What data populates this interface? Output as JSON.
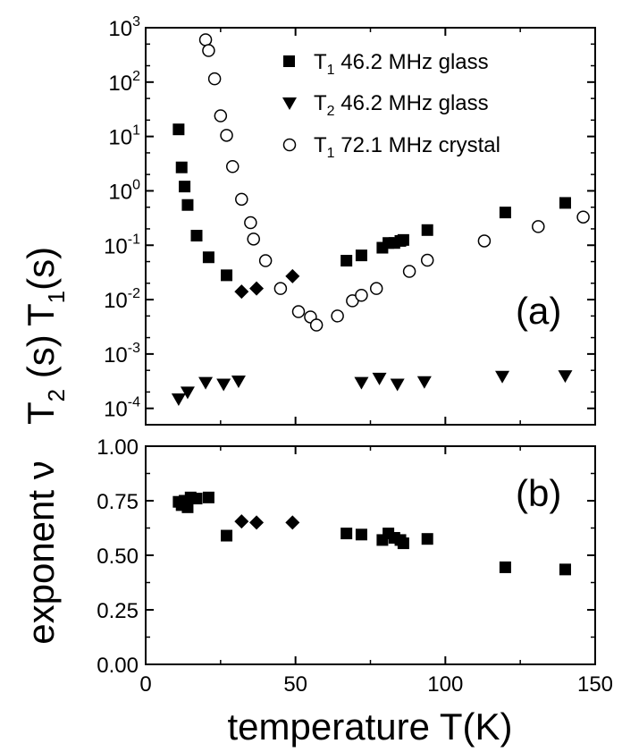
{
  "chart_data": [
    {
      "panel": "(a)",
      "type": "scatter",
      "x_range": [
        0,
        150
      ],
      "y_scale": "log",
      "y_range": [
        5e-05,
        1000
      ],
      "y_tick_exponents": [
        -4,
        -3,
        -2,
        -1,
        0,
        1,
        2,
        3
      ],
      "y_tick_base": "10",
      "ylabel_top": {
        "main": "T",
        "sub": "1",
        "rest": "(s)"
      },
      "ylabel_bottom": {
        "main": "T",
        "sub": "2",
        "rest": " (s)"
      },
      "legend_position": "top-right",
      "legend": [
        {
          "main": "T",
          "sub": "1",
          "rest": " 46.2 MHz glass",
          "marker": "square-filled"
        },
        {
          "main": "T",
          "sub": "2",
          "rest": " 46.2 MHz glass",
          "marker": "triangle-down-filled"
        },
        {
          "main": "T",
          "sub": "1",
          "rest": " 72.1 MHz crystal",
          "marker": "circle-open"
        }
      ],
      "series": [
        {
          "name": "T1 46.2 MHz glass",
          "marker": "square-filled",
          "points": [
            [
              11,
              13.5
            ],
            [
              12,
              2.7
            ],
            [
              13,
              1.2
            ],
            [
              14,
              0.55
            ],
            [
              17,
              0.15
            ],
            [
              21,
              0.06
            ],
            [
              27,
              0.028
            ],
            [
              67,
              0.052
            ],
            [
              72,
              0.065
            ],
            [
              79,
              0.09
            ],
            [
              81,
              0.11
            ],
            [
              83,
              0.11
            ],
            [
              85,
              0.12
            ],
            [
              86,
              0.125
            ],
            [
              94,
              0.19
            ],
            [
              120,
              0.4
            ],
            [
              140,
              0.6
            ]
          ]
        },
        {
          "name": "T1 46.2 MHz glass (diamond)",
          "marker": "diamond-filled",
          "points": [
            [
              32,
              0.014
            ],
            [
              37,
              0.016
            ],
            [
              49,
              0.027
            ]
          ]
        },
        {
          "name": "T2 46.2 MHz glass",
          "marker": "triangle-down-filled",
          "points": [
            [
              11,
              0.00015
            ],
            [
              14,
              0.0002
            ],
            [
              20,
              0.0003
            ],
            [
              26,
              0.00028
            ],
            [
              31,
              0.00032
            ],
            [
              72,
              0.0003
            ],
            [
              78,
              0.00036
            ],
            [
              84,
              0.00028
            ],
            [
              93,
              0.00031
            ],
            [
              119,
              0.00039
            ],
            [
              140,
              0.0004
            ]
          ]
        },
        {
          "name": "T1 72.1 MHz crystal",
          "marker": "circle-open",
          "points": [
            [
              20,
              600
            ],
            [
              21,
              380
            ],
            [
              23,
              115
            ],
            [
              25,
              24
            ],
            [
              27,
              10.5
            ],
            [
              29,
              2.8
            ],
            [
              32,
              0.7
            ],
            [
              35,
              0.26
            ],
            [
              36,
              0.13
            ],
            [
              40,
              0.052
            ],
            [
              45,
              0.016
            ],
            [
              51,
              0.006
            ],
            [
              55,
              0.0048
            ],
            [
              57,
              0.0034
            ],
            [
              64,
              0.005
            ],
            [
              69,
              0.0095
            ],
            [
              72,
              0.012
            ],
            [
              77,
              0.016
            ],
            [
              88,
              0.033
            ],
            [
              94,
              0.053
            ],
            [
              113,
              0.12
            ],
            [
              131,
              0.22
            ],
            [
              146,
              0.33
            ]
          ]
        }
      ]
    },
    {
      "panel": "(b)",
      "type": "scatter",
      "x_range": [
        0,
        150
      ],
      "y_range": [
        0,
        1
      ],
      "x_ticks": [
        "0",
        "50",
        "100",
        "150"
      ],
      "y_ticks": [
        "0.00",
        "0.25",
        "0.50",
        "0.75",
        "1.00"
      ],
      "xlabel": "temperature T(K)",
      "ylabel": "exponent ν",
      "series": [
        {
          "name": "glass",
          "marker": "square-filled",
          "points": [
            [
              11,
              0.745
            ],
            [
              12,
              0.73
            ],
            [
              13,
              0.75
            ],
            [
              14,
              0.72
            ],
            [
              15,
              0.765
            ],
            [
              17,
              0.76
            ],
            [
              21,
              0.765
            ],
            [
              27,
              0.59
            ],
            [
              67,
              0.6
            ],
            [
              72,
              0.595
            ],
            [
              79,
              0.57
            ],
            [
              81,
              0.6
            ],
            [
              83,
              0.58
            ],
            [
              85,
              0.57
            ],
            [
              86,
              0.555
            ],
            [
              94,
              0.575
            ],
            [
              120,
              0.445
            ],
            [
              140,
              0.435
            ]
          ]
        },
        {
          "name": "glass (diamond)",
          "marker": "diamond-filled",
          "points": [
            [
              32,
              0.655
            ],
            [
              37,
              0.65
            ],
            [
              49,
              0.65
            ]
          ]
        }
      ]
    }
  ]
}
